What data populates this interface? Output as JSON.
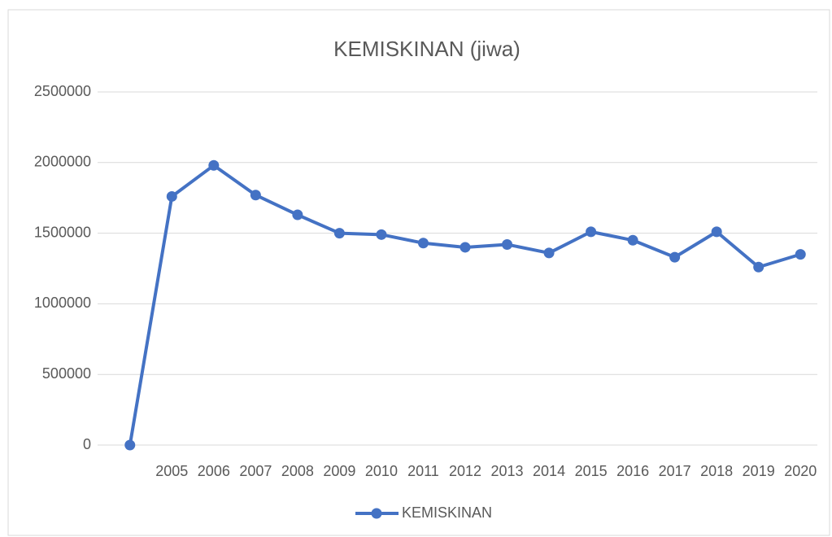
{
  "chart_data": {
    "type": "line",
    "title": "KEMISKINAN (jiwa)",
    "categories": [
      null,
      "2005",
      "2006",
      "2007",
      "2008",
      "2009",
      "2010",
      "2011",
      "2012",
      "2013",
      "2014",
      "2015",
      "2016",
      "2017",
      "2018",
      "2019",
      "2020"
    ],
    "series": [
      {
        "name": "KEMISKINAN",
        "color": "#4472c4",
        "values": [
          0,
          1760000,
          1980000,
          1770000,
          1630000,
          1500000,
          1490000,
          1430000,
          1400000,
          1420000,
          1360000,
          1510000,
          1450000,
          1330000,
          1510000,
          1260000,
          1350000
        ]
      }
    ],
    "ylim": [
      0,
      2500000
    ],
    "yticks": [
      0,
      500000,
      1000000,
      1500000,
      2000000,
      2500000
    ],
    "grid": true,
    "legend": "bottom"
  }
}
